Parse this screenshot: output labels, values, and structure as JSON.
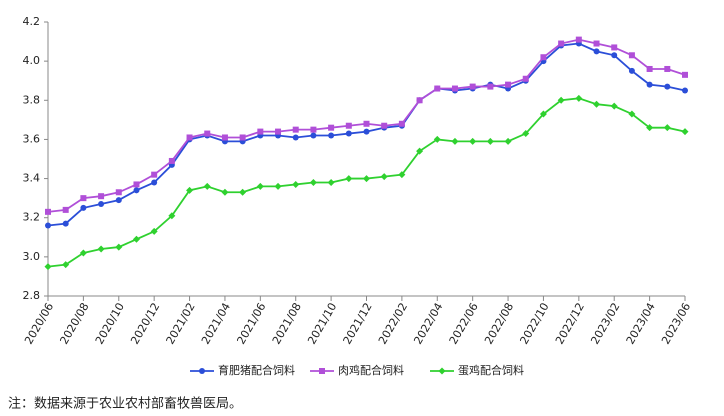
{
  "chart_data": {
    "type": "line",
    "categories": [
      "2020/06",
      null,
      "2020/08",
      null,
      "2020/10",
      null,
      "2020/12",
      null,
      "2021/02",
      null,
      "2021/04",
      null,
      "2021/06",
      null,
      "2021/08",
      null,
      "2021/10",
      null,
      "2021/12",
      null,
      "2022/02",
      null,
      "2022/04",
      null,
      "2022/06",
      null,
      "2022/08",
      null,
      "2022/10",
      null,
      "2022/12",
      null,
      "2023/02",
      null,
      "2023/04",
      null,
      "2023/06"
    ],
    "series": [
      {
        "name": "育肥猪配合饲料",
        "color": "#2b4ed8",
        "marker": "circle",
        "values": [
          3.16,
          3.17,
          3.25,
          3.27,
          3.29,
          3.34,
          3.38,
          3.47,
          3.6,
          3.62,
          3.59,
          3.59,
          3.62,
          3.62,
          3.61,
          3.62,
          3.62,
          3.63,
          3.64,
          3.66,
          3.67,
          3.8,
          3.86,
          3.85,
          3.86,
          3.88,
          3.86,
          3.9,
          4.0,
          4.08,
          4.09,
          4.05,
          4.03,
          3.95,
          3.88,
          3.87,
          3.85
        ]
      },
      {
        "name": "肉鸡配合饲料",
        "color": "#b04fd8",
        "marker": "square",
        "values": [
          3.23,
          3.24,
          3.3,
          3.31,
          3.33,
          3.37,
          3.42,
          3.49,
          3.61,
          3.63,
          3.61,
          3.61,
          3.64,
          3.64,
          3.65,
          3.65,
          3.66,
          3.67,
          3.68,
          3.67,
          3.68,
          3.8,
          3.86,
          3.86,
          3.87,
          3.87,
          3.88,
          3.91,
          4.02,
          4.09,
          4.11,
          4.09,
          4.07,
          4.03,
          3.96,
          3.96,
          3.93
        ]
      },
      {
        "name": "蛋鸡配合饲料",
        "color": "#2fd12f",
        "marker": "diamond",
        "values": [
          2.95,
          2.96,
          3.02,
          3.04,
          3.05,
          3.09,
          3.13,
          3.21,
          3.34,
          3.36,
          3.33,
          3.33,
          3.36,
          3.36,
          3.37,
          3.38,
          3.38,
          3.4,
          3.4,
          3.41,
          3.42,
          3.54,
          3.6,
          3.59,
          3.59,
          3.59,
          3.59,
          3.63,
          3.73,
          3.8,
          3.81,
          3.78,
          3.77,
          3.73,
          3.66,
          3.66,
          3.64
        ]
      }
    ],
    "ylim": [
      2.8,
      4.2
    ],
    "yticks": [
      2.8,
      {
        "value": 3,
        "label": "3.0"
      },
      3.2,
      3.4,
      3.6,
      3.8,
      {
        "value": 4,
        "label": "4.0"
      },
      4.2
    ],
    "note": "注：数据来源于农业农村部畜牧兽医局。"
  }
}
